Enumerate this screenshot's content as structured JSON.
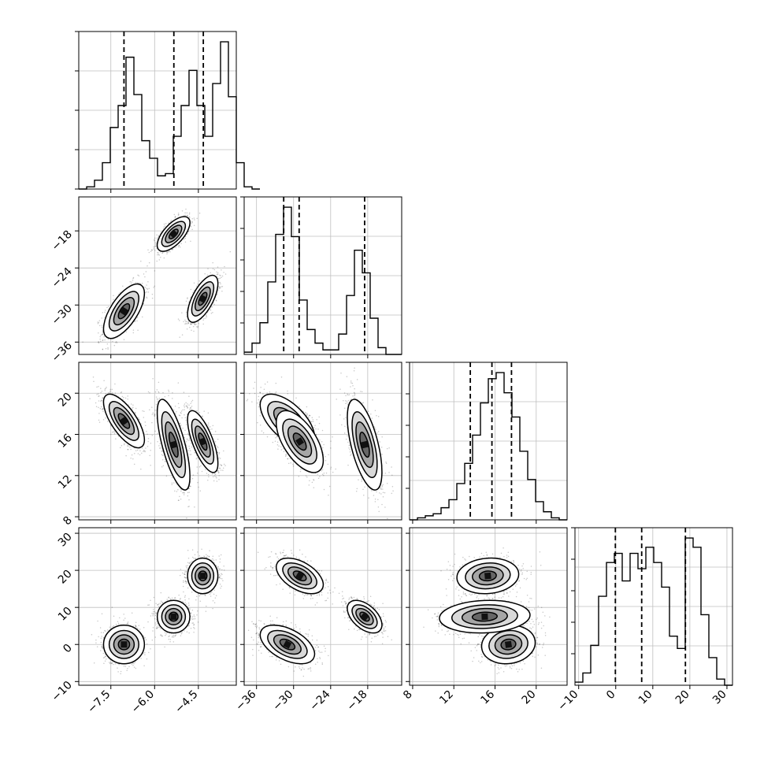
{
  "chart_data": {
    "type": "corner",
    "grid": true,
    "parameters": [
      {
        "name": "",
        "range": [
          -8.6,
          -3.2
        ],
        "ticks": [
          -7.5,
          -6.0,
          -4.5
        ],
        "tick_labels": [
          "−7.5",
          "−6.0",
          "−4.5"
        ]
      },
      {
        "name": "",
        "range": [
          -38,
          -12.5
        ],
        "ticks": [
          -36,
          -30,
          -24,
          -18
        ],
        "tick_labels": [
          "−36",
          "−30",
          "−24",
          "−18"
        ]
      },
      {
        "name": "",
        "range": [
          7.7,
          23.0
        ],
        "ticks": [
          8,
          12,
          16,
          20
        ],
        "tick_labels": [
          "8",
          "12",
          "16",
          "20"
        ]
      },
      {
        "name": "",
        "range": [
          -11,
          31.5
        ],
        "ticks": [
          -10,
          0,
          10,
          20,
          30
        ],
        "tick_labels": [
          "−10",
          "0",
          "10",
          "20",
          "30"
        ]
      }
    ],
    "marginals": [
      {
        "param": 0,
        "edges_start": -8.6,
        "bin_width": 0.27,
        "counts": [
          0,
          1,
          4,
          12,
          28,
          38,
          60,
          43,
          22,
          14,
          6,
          7,
          24,
          38,
          54,
          38,
          24,
          48,
          67,
          42,
          12,
          1,
          0
        ],
        "quantiles": [
          -7.05,
          -5.34,
          -4.33
        ]
      },
      {
        "param": 1,
        "edges_start": -38,
        "bin_width": 1.275,
        "counts": [
          1,
          5,
          14,
          32,
          53,
          65,
          52,
          24,
          11,
          5,
          2,
          2,
          9,
          26,
          46,
          36,
          16,
          3,
          0,
          0
        ],
        "quantiles": [
          -31.6,
          -29.1,
          -18.5
        ]
      },
      {
        "param": 2,
        "edges_start": 7.7,
        "bin_width": 0.765,
        "counts": [
          0,
          1,
          2,
          3,
          6,
          10,
          18,
          28,
          42,
          58,
          70,
          73,
          63,
          51,
          34,
          20,
          9,
          4,
          1,
          0
        ],
        "quantiles": [
          13.6,
          15.7,
          17.6
        ]
      },
      {
        "param": 3,
        "edges_start": -11,
        "bin_width": 2.125,
        "counts": [
          1,
          4,
          13,
          29,
          40,
          43,
          34,
          43,
          38,
          45,
          40,
          32,
          16,
          12,
          48,
          45,
          23,
          9,
          2,
          0
        ],
        "quantiles": [
          -0.1,
          7.0,
          18.8
        ]
      }
    ],
    "modes": [
      {
        "mu": [
          -7.05,
          -31.0,
          17.3,
          0.0
        ],
        "sd": [
          0.35,
          2.2,
          1.3,
          2.6
        ]
      },
      {
        "mu": [
          -5.35,
          -18.5,
          15.0,
          7.5
        ],
        "sd": [
          0.28,
          1.4,
          2.2,
          2.2
        ]
      },
      {
        "mu": [
          -4.35,
          -29.0,
          15.3,
          18.5
        ],
        "sd": [
          0.26,
          1.9,
          1.5,
          2.4
        ]
      }
    ],
    "correlations": [
      [
        0,
        1,
        0.65
      ],
      [
        0,
        2,
        -0.7
      ],
      [
        0,
        3,
        0.0
      ],
      [
        1,
        2,
        -0.6
      ],
      [
        1,
        3,
        -0.5
      ],
      [
        2,
        3,
        0.1
      ]
    ],
    "quantile_levels": [
      0.16,
      0.5,
      0.84
    ]
  }
}
